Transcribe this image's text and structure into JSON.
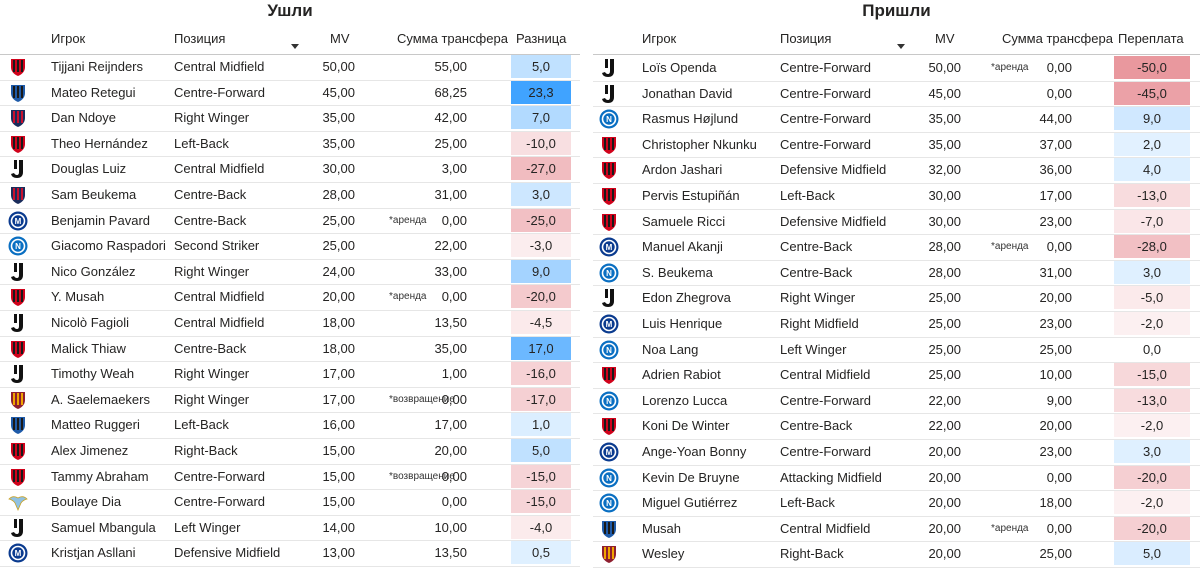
{
  "left": {
    "title": "Ушли",
    "headers": {
      "player": "Игрок",
      "position": "Позиция",
      "mv": "MV",
      "fee": "Сумма трансфера",
      "diff": "Разница"
    },
    "rows": [
      {
        "club": "milan",
        "player": "Tijjani Reijnders",
        "position": "Central Midfield",
        "mv": "50,00",
        "note": "",
        "fee": "55,00",
        "diff": "5,0",
        "d": 5.0
      },
      {
        "club": "atalanta",
        "player": "Mateo Retegui",
        "position": "Centre-Forward",
        "mv": "45,00",
        "note": "",
        "fee": "68,25",
        "diff": "23,3",
        "d": 23.3
      },
      {
        "club": "bologna",
        "player": "Dan Ndoye",
        "position": "Right Winger",
        "mv": "35,00",
        "note": "",
        "fee": "42,00",
        "diff": "7,0",
        "d": 7.0
      },
      {
        "club": "milan",
        "player": "Theo Hernández",
        "position": "Left-Back",
        "mv": "35,00",
        "note": "",
        "fee": "25,00",
        "diff": "-10,0",
        "d": -10.0
      },
      {
        "club": "juventus",
        "player": "Douglas Luiz",
        "position": "Central Midfield",
        "mv": "30,00",
        "note": "",
        "fee": "3,00",
        "diff": "-27,0",
        "d": -27.0
      },
      {
        "club": "bologna",
        "player": "Sam Beukema",
        "position": "Centre-Back",
        "mv": "28,00",
        "note": "",
        "fee": "31,00",
        "diff": "3,0",
        "d": 3.0
      },
      {
        "club": "inter",
        "player": "Benjamin Pavard",
        "position": "Centre-Back",
        "mv": "25,00",
        "note": "*аренда",
        "fee": "0,00",
        "diff": "-25,0",
        "d": -25.0
      },
      {
        "club": "napoli",
        "player": "Giacomo Raspadori",
        "position": "Second Striker",
        "mv": "25,00",
        "note": "",
        "fee": "22,00",
        "diff": "-3,0",
        "d": -3.0
      },
      {
        "club": "juventus",
        "player": "Nico González",
        "position": "Right Winger",
        "mv": "24,00",
        "note": "",
        "fee": "33,00",
        "diff": "9,0",
        "d": 9.0
      },
      {
        "club": "milan",
        "player": "Y. Musah",
        "position": "Central Midfield",
        "mv": "20,00",
        "note": "*аренда",
        "fee": "0,00",
        "diff": "-20,0",
        "d": -20.0
      },
      {
        "club": "juventus",
        "player": "Nicolò Fagioli",
        "position": "Central Midfield",
        "mv": "18,00",
        "note": "",
        "fee": "13,50",
        "diff": "-4,5",
        "d": -4.5
      },
      {
        "club": "milan",
        "player": "Malick Thiaw",
        "position": "Centre-Back",
        "mv": "18,00",
        "note": "",
        "fee": "35,00",
        "diff": "17,0",
        "d": 17.0
      },
      {
        "club": "juventus",
        "player": "Timothy Weah",
        "position": "Right Winger",
        "mv": "17,00",
        "note": "",
        "fee": "1,00",
        "diff": "-16,0",
        "d": -16.0
      },
      {
        "club": "roma",
        "player": "A. Saelemaekers",
        "position": "Right Winger",
        "mv": "17,00",
        "note": "*возвращение",
        "fee": "0,00",
        "diff": "-17,0",
        "d": -17.0
      },
      {
        "club": "atalanta",
        "player": "Matteo Ruggeri",
        "position": "Left-Back",
        "mv": "16,00",
        "note": "",
        "fee": "17,00",
        "diff": "1,0",
        "d": 1.0
      },
      {
        "club": "milan",
        "player": "Alex Jimenez",
        "position": "Right-Back",
        "mv": "15,00",
        "note": "",
        "fee": "20,00",
        "diff": "5,0",
        "d": 5.0
      },
      {
        "club": "milan",
        "player": "Tammy Abraham",
        "position": "Centre-Forward",
        "mv": "15,00",
        "note": "*возвращение",
        "fee": "0,00",
        "diff": "-15,0",
        "d": -15.0
      },
      {
        "club": "lazio",
        "player": "Boulaye Dia",
        "position": "Centre-Forward",
        "mv": "15,00",
        "note": "",
        "fee": "0,00",
        "diff": "-15,0",
        "d": -15.0
      },
      {
        "club": "juventus",
        "player": "Samuel Mbangula",
        "position": "Left Winger",
        "mv": "14,00",
        "note": "",
        "fee": "10,00",
        "diff": "-4,0",
        "d": -4.0
      },
      {
        "club": "inter",
        "player": "Kristjan Asllani",
        "position": "Defensive Midfield",
        "mv": "13,00",
        "note": "",
        "fee": "13,50",
        "diff": "0,5",
        "d": 0.5
      }
    ]
  },
  "right": {
    "title": "Пришли",
    "headers": {
      "player": "Игрок",
      "position": "Позиция",
      "mv": "MV",
      "fee": "Сумма трансфера",
      "diff": "Переплата"
    },
    "rows": [
      {
        "club": "juventus",
        "player": "Loïs Openda",
        "position": "Centre-Forward",
        "mv": "50,00",
        "note": "*аренда",
        "fee": "0,00",
        "diff": "-50,0",
        "d": -50.0
      },
      {
        "club": "juventus",
        "player": "Jonathan David",
        "position": "Centre-Forward",
        "mv": "45,00",
        "note": "",
        "fee": "0,00",
        "diff": "-45,0",
        "d": -45.0
      },
      {
        "club": "napoli",
        "player": "Rasmus Højlund",
        "position": "Centre-Forward",
        "mv": "35,00",
        "note": "",
        "fee": "44,00",
        "diff": "9,0",
        "d": 9.0
      },
      {
        "club": "milan",
        "player": "Christopher Nkunku",
        "position": "Centre-Forward",
        "mv": "35,00",
        "note": "",
        "fee": "37,00",
        "diff": "2,0",
        "d": 2.0
      },
      {
        "club": "milan",
        "player": "Ardon Jashari",
        "position": "Defensive Midfield",
        "mv": "32,00",
        "note": "",
        "fee": "36,00",
        "diff": "4,0",
        "d": 4.0
      },
      {
        "club": "milan",
        "player": "Pervis Estupiñán",
        "position": "Left-Back",
        "mv": "30,00",
        "note": "",
        "fee": "17,00",
        "diff": "-13,0",
        "d": -13.0
      },
      {
        "club": "milan",
        "player": "Samuele Ricci",
        "position": "Defensive Midfield",
        "mv": "30,00",
        "note": "",
        "fee": "23,00",
        "diff": "-7,0",
        "d": -7.0
      },
      {
        "club": "inter",
        "player": "Manuel Akanji",
        "position": "Centre-Back",
        "mv": "28,00",
        "note": "*аренда",
        "fee": "0,00",
        "diff": "-28,0",
        "d": -28.0
      },
      {
        "club": "napoli",
        "player": "S. Beukema",
        "position": "Centre-Back",
        "mv": "28,00",
        "note": "",
        "fee": "31,00",
        "diff": "3,0",
        "d": 3.0
      },
      {
        "club": "juventus",
        "player": "Edon Zhegrova",
        "position": "Right Winger",
        "mv": "25,00",
        "note": "",
        "fee": "20,00",
        "diff": "-5,0",
        "d": -5.0
      },
      {
        "club": "inter",
        "player": "Luis Henrique",
        "position": "Right Midfield",
        "mv": "25,00",
        "note": "",
        "fee": "23,00",
        "diff": "-2,0",
        "d": -2.0
      },
      {
        "club": "napoli",
        "player": "Noa Lang",
        "position": "Left Winger",
        "mv": "25,00",
        "note": "",
        "fee": "25,00",
        "diff": "0,0",
        "d": 0.0
      },
      {
        "club": "milan",
        "player": "Adrien Rabiot",
        "position": "Central Midfield",
        "mv": "25,00",
        "note": "",
        "fee": "10,00",
        "diff": "-15,0",
        "d": -15.0
      },
      {
        "club": "napoli",
        "player": "Lorenzo Lucca",
        "position": "Centre-Forward",
        "mv": "22,00",
        "note": "",
        "fee": "9,00",
        "diff": "-13,0",
        "d": -13.0
      },
      {
        "club": "milan",
        "player": "Koni De Winter",
        "position": "Centre-Back",
        "mv": "22,00",
        "note": "",
        "fee": "20,00",
        "diff": "-2,0",
        "d": -2.0
      },
      {
        "club": "inter",
        "player": "Ange-Yoan Bonny",
        "position": "Centre-Forward",
        "mv": "20,00",
        "note": "",
        "fee": "23,00",
        "diff": "3,0",
        "d": 3.0
      },
      {
        "club": "napoli",
        "player": "Kevin De Bruyne",
        "position": "Attacking Midfield",
        "mv": "20,00",
        "note": "",
        "fee": "0,00",
        "diff": "-20,0",
        "d": -20.0
      },
      {
        "club": "napoli",
        "player": "Miguel Gutiérrez",
        "position": "Left-Back",
        "mv": "20,00",
        "note": "",
        "fee": "18,00",
        "diff": "-2,0",
        "d": -2.0
      },
      {
        "club": "atalanta",
        "player": "Musah",
        "position": "Central Midfield",
        "mv": "20,00",
        "note": "*аренда",
        "fee": "0,00",
        "diff": "-20,0",
        "d": -20.0
      },
      {
        "club": "roma",
        "player": "Wesley",
        "position": "Right-Back",
        "mv": "20,00",
        "note": "",
        "fee": "25,00",
        "diff": "5,0",
        "d": 5.0
      }
    ]
  },
  "club_colors": {
    "milan": [
      "#d0021b",
      "#1a1a1a"
    ],
    "atalanta": [
      "#1e5aa8",
      "#1a1a1a"
    ],
    "bologna": [
      "#1a2c5b",
      "#c8102e"
    ],
    "juventus": [
      "#111111",
      "#ffffff"
    ],
    "inter": [
      "#0b3b8f",
      "#1a1a1a"
    ],
    "napoli": [
      "#0a6fc2",
      "#ffffff"
    ],
    "roma": [
      "#8e1f2f",
      "#f0a500"
    ],
    "lazio": [
      "#8fc1e3",
      "#c9a227"
    ]
  },
  "scale_colors": {
    "positive": "#118dff",
    "negative": "#e06c75"
  }
}
